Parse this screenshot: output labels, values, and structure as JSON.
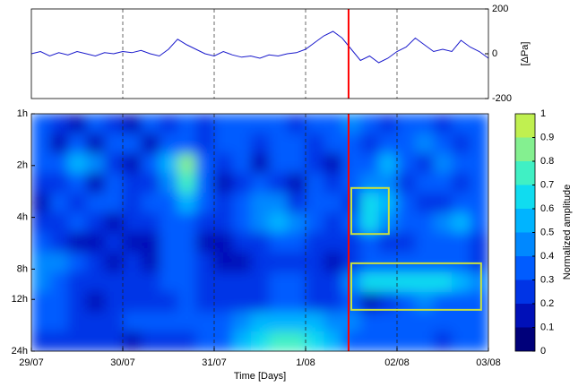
{
  "chart_data": [
    {
      "type": "line",
      "ylabel": "[ΔPa]",
      "color": "#1a1acc",
      "xlim": [
        0,
        5
      ],
      "ylim": [
        -200,
        200
      ],
      "yticks": [
        200,
        0,
        -200
      ],
      "values": [
        0,
        10,
        -10,
        5,
        -5,
        10,
        0,
        -10,
        5,
        0,
        10,
        5,
        15,
        0,
        -10,
        20,
        65,
        40,
        20,
        0,
        -10,
        10,
        -5,
        -15,
        -10,
        -20,
        -5,
        -10,
        0,
        5,
        20,
        50,
        80,
        100,
        70,
        20,
        -30,
        -10,
        -40,
        -20,
        10,
        30,
        70,
        40,
        10,
        20,
        10,
        60,
        30,
        10,
        -20
      ]
    },
    {
      "type": "heatmap",
      "xlabel": "Time [Days]",
      "xlim": [
        0,
        5
      ],
      "xticks": [
        {
          "value": 0,
          "label": "29/07"
        },
        {
          "value": 1,
          "label": "30/07"
        },
        {
          "value": 2,
          "label": "31/07"
        },
        {
          "value": 3,
          "label": "1/08"
        },
        {
          "value": 4,
          "label": "02/08"
        },
        {
          "value": 5,
          "label": "03/08"
        }
      ],
      "yscale": "log",
      "ylim": [
        1,
        24
      ],
      "yticks": [
        {
          "value": 1,
          "label": "1h"
        },
        {
          "value": 2,
          "label": "2h"
        },
        {
          "value": 4,
          "label": "4h"
        },
        {
          "value": 8,
          "label": "8h"
        },
        {
          "value": 12,
          "label": "12h"
        },
        {
          "value": 24,
          "label": "24h"
        }
      ],
      "z": [
        [
          0.3,
          0.25,
          0.1,
          0.3,
          0.25,
          0.1,
          0.3,
          0.2,
          0.3,
          0.25,
          0.35,
          0.3,
          0.3,
          0.35,
          0.2,
          0.3,
          0.35,
          0.4,
          0.3,
          0.2,
          0.35,
          0.3,
          0.25,
          0.35,
          0.3
        ],
        [
          0.35,
          0.1,
          0.3,
          0.1,
          0.35,
          0.3,
          0.15,
          0.3,
          0.35,
          0.2,
          0.3,
          0.3,
          0.2,
          0.3,
          0.35,
          0.25,
          0.3,
          0.35,
          0.2,
          0.35,
          0.3,
          0.4,
          0.3,
          0.25,
          0.3
        ],
        [
          0.3,
          0.35,
          0.5,
          0.45,
          0.25,
          0.1,
          0.3,
          0.55,
          0.85,
          0.3,
          0.2,
          0.3,
          0.15,
          0.3,
          0.3,
          0.25,
          0.1,
          0.3,
          0.35,
          0.5,
          0.3,
          0.2,
          0.45,
          0.3,
          0.35
        ],
        [
          0.2,
          0.25,
          0.35,
          0.1,
          0.3,
          0.25,
          0.2,
          0.45,
          0.7,
          0.35,
          0.1,
          0.25,
          0.3,
          0.2,
          0.15,
          0.3,
          0.2,
          0.3,
          0.45,
          0.4,
          0.25,
          0.3,
          0.35,
          0.2,
          0.3
        ],
        [
          0.1,
          0.3,
          0.2,
          0.3,
          0.35,
          0.2,
          0.3,
          0.3,
          0.5,
          0.3,
          0.25,
          0.35,
          0.45,
          0.4,
          0.2,
          0.3,
          0.3,
          0.2,
          0.6,
          0.55,
          0.3,
          0.25,
          0.2,
          0.35,
          0.3
        ],
        [
          0.25,
          0.2,
          0.3,
          0.25,
          0.15,
          0.25,
          0.2,
          0.35,
          0.35,
          0.25,
          0.2,
          0.3,
          0.4,
          0.5,
          0.45,
          0.3,
          0.25,
          0.3,
          0.6,
          0.4,
          0.3,
          0.35,
          0.45,
          0.5,
          0.3
        ],
        [
          0.3,
          0.25,
          0.15,
          0.1,
          0.2,
          0.15,
          0.1,
          0.3,
          0.3,
          0.15,
          0.1,
          0.2,
          0.25,
          0.3,
          0.3,
          0.25,
          0.2,
          0.2,
          0.3,
          0.25,
          0.2,
          0.3,
          0.3,
          0.35,
          0.25
        ],
        [
          0.45,
          0.4,
          0.3,
          0.2,
          0.15,
          0.2,
          0.15,
          0.3,
          0.3,
          0.2,
          0.15,
          0.15,
          0.2,
          0.2,
          0.25,
          0.2,
          0.15,
          0.25,
          0.3,
          0.3,
          0.3,
          0.35,
          0.3,
          0.3,
          0.2
        ],
        [
          0.4,
          0.35,
          0.25,
          0.2,
          0.2,
          0.25,
          0.25,
          0.3,
          0.3,
          0.25,
          0.2,
          0.2,
          0.25,
          0.3,
          0.3,
          0.25,
          0.25,
          0.4,
          0.6,
          0.6,
          0.65,
          0.65,
          0.6,
          0.55,
          0.4
        ],
        [
          0.35,
          0.3,
          0.2,
          0.15,
          0.2,
          0.25,
          0.25,
          0.25,
          0.3,
          0.25,
          0.2,
          0.2,
          0.25,
          0.3,
          0.3,
          0.25,
          0.2,
          0.3,
          0.15,
          0.2,
          0.3,
          0.4,
          0.35,
          0.3,
          0.3
        ],
        [
          0.3,
          0.3,
          0.25,
          0.25,
          0.25,
          0.3,
          0.3,
          0.3,
          0.3,
          0.3,
          0.35,
          0.45,
          0.5,
          0.55,
          0.55,
          0.5,
          0.45,
          0.4,
          0.35,
          0.35,
          0.35,
          0.35,
          0.3,
          0.3,
          0.3
        ],
        [
          0.25,
          0.25,
          0.2,
          0.2,
          0.2,
          0.15,
          0.2,
          0.25,
          0.25,
          0.3,
          0.35,
          0.55,
          0.65,
          0.7,
          0.7,
          0.65,
          0.5,
          0.35,
          0.3,
          0.3,
          0.3,
          0.3,
          0.25,
          0.3,
          0.3
        ]
      ],
      "colorbar": {
        "label": "Normalized amplitude",
        "lim": [
          0,
          1
        ],
        "ticks": [
          0,
          0.1,
          0.2,
          0.3,
          0.4,
          0.5,
          0.6,
          0.7,
          0.8,
          0.9,
          1
        ],
        "colors": [
          "#00007a",
          "#0010b8",
          "#0034e6",
          "#005cff",
          "#0088ff",
          "#00b4ff",
          "#10dcf0",
          "#40f0c4",
          "#84f090",
          "#c0f050"
        ]
      },
      "marker_x": 3.47,
      "marker_color": "#ff0000",
      "highlights": [
        {
          "x": [
            3.5,
            3.91
          ],
          "y": [
            2.7,
            5.0
          ]
        },
        {
          "x": [
            3.5,
            4.92
          ],
          "y": [
            7.4,
            13.8
          ]
        }
      ],
      "highlight_color": "#c8e040"
    }
  ]
}
